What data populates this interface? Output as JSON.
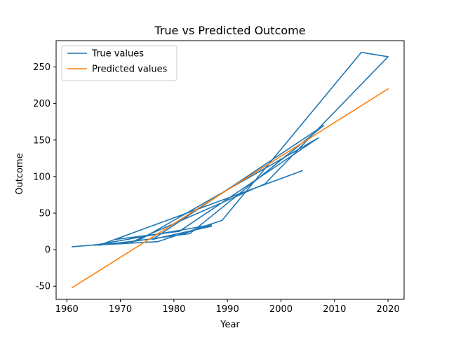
{
  "chart_data": {
    "type": "line",
    "title": "True vs Predicted Outcome",
    "xlabel": "Year",
    "ylabel": "Outcome",
    "xlim": [
      1958,
      2023
    ],
    "ylim": [
      -68,
      286
    ],
    "xticks": [
      1960,
      1970,
      1980,
      1990,
      2000,
      2010,
      2020
    ],
    "yticks": [
      -50,
      0,
      50,
      100,
      150,
      200,
      250
    ],
    "legend_location": "upper-left",
    "grid": false,
    "series": [
      {
        "name": "True values",
        "color": "#1f77b4",
        "x": [
          1961,
          1971,
          1981,
          1987,
          1965,
          1977,
          1989,
          2015,
          2020,
          1997,
          1972,
          1974,
          2007,
          1981,
          1969,
          2004,
          1966,
          1974,
          1983,
          2008,
          1976,
          1987
        ],
        "y": [
          4,
          10,
          20,
          34,
          6,
          11,
          40,
          270,
          264,
          90,
          10,
          15,
          153,
          25,
          14,
          108,
          6,
          13,
          22,
          170,
          14,
          32
        ]
      },
      {
        "name": "Predicted values",
        "color": "#ff7f0e",
        "x": [
          1961,
          2020
        ],
        "y": [
          -52,
          220
        ]
      }
    ]
  }
}
